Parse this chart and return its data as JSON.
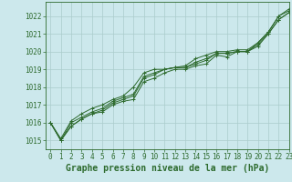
{
  "title": "Graphe pression niveau de la mer (hPa)",
  "background_color": "#cce8ec",
  "grid_color": "#aacccc",
  "line_color": "#2d6a2d",
  "xlim": [
    -0.5,
    23
  ],
  "ylim": [
    1014.5,
    1022.8
  ],
  "yticks": [
    1015,
    1016,
    1017,
    1018,
    1019,
    1020,
    1021,
    1022
  ],
  "xticks": [
    0,
    1,
    2,
    3,
    4,
    5,
    6,
    7,
    8,
    9,
    10,
    11,
    12,
    13,
    14,
    15,
    16,
    17,
    18,
    19,
    20,
    21,
    22,
    23
  ],
  "series": [
    [
      1016.0,
      1015.0,
      1015.8,
      1016.2,
      1016.5,
      1016.6,
      1017.0,
      1017.2,
      1017.3,
      1018.3,
      1018.5,
      1018.8,
      1019.0,
      1019.0,
      1019.2,
      1019.3,
      1019.8,
      1019.7,
      1020.0,
      1020.0,
      1020.3,
      1021.0,
      1021.8,
      1022.2
    ],
    [
      1016.0,
      1015.0,
      1015.8,
      1016.2,
      1016.5,
      1016.7,
      1017.1,
      1017.3,
      1017.5,
      1018.5,
      1018.7,
      1019.0,
      1019.1,
      1019.1,
      1019.3,
      1019.5,
      1019.9,
      1019.9,
      1020.0,
      1020.0,
      1020.4,
      1021.0,
      1021.8,
      1022.2
    ],
    [
      1016.0,
      1015.0,
      1016.0,
      1016.3,
      1016.6,
      1016.8,
      1017.2,
      1017.4,
      1017.6,
      1018.6,
      1018.8,
      1019.0,
      1019.1,
      1019.1,
      1019.4,
      1019.6,
      1019.9,
      1019.9,
      1020.0,
      1020.0,
      1020.5,
      1021.1,
      1022.0,
      1022.3
    ],
    [
      1016.0,
      1015.1,
      1016.1,
      1016.5,
      1016.8,
      1017.0,
      1017.3,
      1017.5,
      1018.0,
      1018.8,
      1019.0,
      1019.0,
      1019.1,
      1019.2,
      1019.6,
      1019.8,
      1020.0,
      1020.0,
      1020.1,
      1020.1,
      1020.5,
      1021.1,
      1022.0,
      1022.4
    ]
  ],
  "marker": "+",
  "markersize": 3,
  "linewidth": 0.7,
  "title_fontsize": 7,
  "tick_fontsize": 5.5,
  "title_color": "#2d6a2d",
  "tick_color": "#2d6a2d",
  "spine_color": "#2d6a2d"
}
